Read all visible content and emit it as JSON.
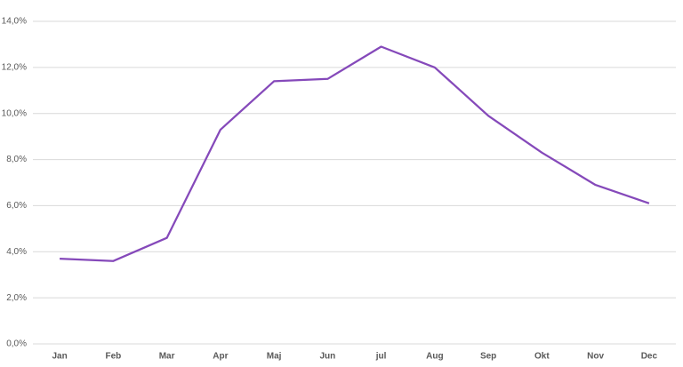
{
  "chart_data": {
    "type": "line",
    "categories": [
      "Jan",
      "Feb",
      "Mar",
      "Apr",
      "Maj",
      "Jun",
      "jul",
      "Aug",
      "Sep",
      "Okt",
      "Nov",
      "Dec"
    ],
    "values": [
      3.7,
      3.6,
      4.6,
      9.3,
      11.4,
      11.5,
      12.9,
      12.0,
      9.9,
      8.3,
      6.9,
      6.1
    ],
    "color": "#8549ba",
    "ylim": [
      0,
      14
    ],
    "yticks": [
      {
        "value": 0,
        "label": "0,0%"
      },
      {
        "value": 2,
        "label": "2,0%"
      },
      {
        "value": 4,
        "label": "4,0%"
      },
      {
        "value": 6,
        "label": "6,0%"
      },
      {
        "value": 8,
        "label": "8,0%"
      },
      {
        "value": 10,
        "label": "10,0%"
      },
      {
        "value": 12,
        "label": "12,0%"
      },
      {
        "value": 14,
        "label": "14,0%"
      }
    ],
    "grid": true
  }
}
